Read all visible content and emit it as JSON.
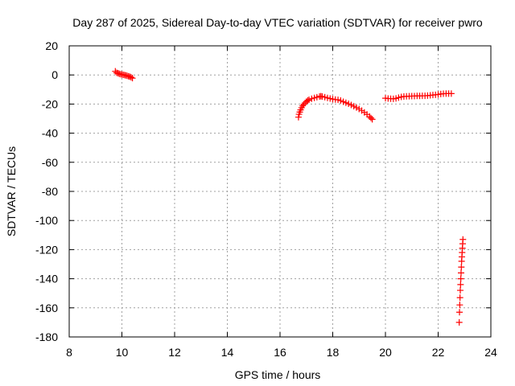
{
  "chart_data": {
    "type": "scatter",
    "title": "Day 287 of 2025, Sidereal Day-to-day VTEC variation (SDTVAR) for receiver pwro",
    "xlabel": "GPS time / hours",
    "ylabel": "SDTVAR / TECUs",
    "xlim": [
      8,
      24
    ],
    "ylim": [
      -180,
      20
    ],
    "x_ticks": [
      "8",
      "10",
      "12",
      "14",
      "16",
      "18",
      "20",
      "22",
      "24"
    ],
    "y_ticks": [
      "20",
      "0",
      "-20",
      "-40",
      "-60",
      "-80",
      "-100",
      "-120",
      "-140",
      "-160",
      "-180"
    ],
    "grid": true,
    "marker": "+",
    "color": "#ff0000",
    "series": [
      {
        "points": [
          [
            9.75,
            2.5
          ],
          [
            9.8,
            1.5
          ],
          [
            9.85,
            1.2
          ],
          [
            9.9,
            0.8
          ],
          [
            9.95,
            0.5
          ],
          [
            10.0,
            0.3
          ],
          [
            10.05,
            0.1
          ],
          [
            10.1,
            -0.1
          ],
          [
            10.15,
            -0.3
          ],
          [
            10.2,
            -0.6
          ],
          [
            10.25,
            -0.9
          ],
          [
            10.3,
            -1.2
          ],
          [
            10.35,
            -1.6
          ],
          [
            10.4,
            -2.2
          ],
          [
            16.7,
            -29.0
          ],
          [
            16.72,
            -27.0
          ],
          [
            16.75,
            -25.5
          ],
          [
            16.78,
            -24.0
          ],
          [
            16.82,
            -22.5
          ],
          [
            16.86,
            -21.2
          ],
          [
            16.9,
            -20.2
          ],
          [
            16.95,
            -19.2
          ],
          [
            17.0,
            -18.3
          ],
          [
            17.05,
            -17.6
          ],
          [
            17.1,
            -17.0
          ],
          [
            17.2,
            -16.3
          ],
          [
            17.3,
            -15.8
          ],
          [
            17.4,
            -15.3
          ],
          [
            17.5,
            -14.8
          ],
          [
            17.55,
            -14.6
          ],
          [
            17.6,
            -14.8
          ],
          [
            17.7,
            -15.3
          ],
          [
            17.8,
            -15.8
          ],
          [
            17.9,
            -16.2
          ],
          [
            18.0,
            -16.6
          ],
          [
            18.1,
            -16.9
          ],
          [
            18.2,
            -17.1
          ],
          [
            18.3,
            -17.6
          ],
          [
            18.4,
            -18.4
          ],
          [
            18.5,
            -19.1
          ],
          [
            18.6,
            -19.8
          ],
          [
            18.7,
            -20.6
          ],
          [
            18.8,
            -21.5
          ],
          [
            18.9,
            -22.4
          ],
          [
            19.0,
            -23.4
          ],
          [
            19.1,
            -24.5
          ],
          [
            19.2,
            -25.7
          ],
          [
            19.3,
            -27.1
          ],
          [
            19.4,
            -28.6
          ],
          [
            19.45,
            -29.6
          ],
          [
            19.5,
            -30.5
          ],
          [
            20.0,
            -16.0
          ],
          [
            20.1,
            -16.2
          ],
          [
            20.2,
            -16.3
          ],
          [
            20.3,
            -16.4
          ],
          [
            20.4,
            -16.1
          ],
          [
            20.5,
            -15.6
          ],
          [
            20.6,
            -15.1
          ],
          [
            20.7,
            -14.8
          ],
          [
            20.8,
            -14.7
          ],
          [
            20.9,
            -14.6
          ],
          [
            21.0,
            -14.5
          ],
          [
            21.1,
            -14.5
          ],
          [
            21.2,
            -14.4
          ],
          [
            21.3,
            -14.4
          ],
          [
            21.4,
            -14.3
          ],
          [
            21.5,
            -14.3
          ],
          [
            21.6,
            -14.2
          ],
          [
            21.7,
            -14.0
          ],
          [
            21.8,
            -13.8
          ],
          [
            21.9,
            -13.6
          ],
          [
            22.0,
            -13.4
          ],
          [
            22.1,
            -13.1
          ],
          [
            22.2,
            -12.9
          ],
          [
            22.3,
            -12.8
          ],
          [
            22.4,
            -12.8
          ],
          [
            22.5,
            -12.8
          ],
          [
            22.8,
            -170.0
          ],
          [
            22.81,
            -163.0
          ],
          [
            22.82,
            -158.0
          ],
          [
            22.83,
            -153.0
          ],
          [
            22.84,
            -148.0
          ],
          [
            22.85,
            -144.0
          ],
          [
            22.86,
            -140.0
          ],
          [
            22.87,
            -136.0
          ],
          [
            22.88,
            -132.0
          ],
          [
            22.89,
            -128.0
          ],
          [
            22.9,
            -125.0
          ],
          [
            22.91,
            -122.0
          ],
          [
            22.92,
            -119.0
          ],
          [
            22.93,
            -116.0
          ],
          [
            22.94,
            -113.0
          ]
        ]
      }
    ]
  }
}
